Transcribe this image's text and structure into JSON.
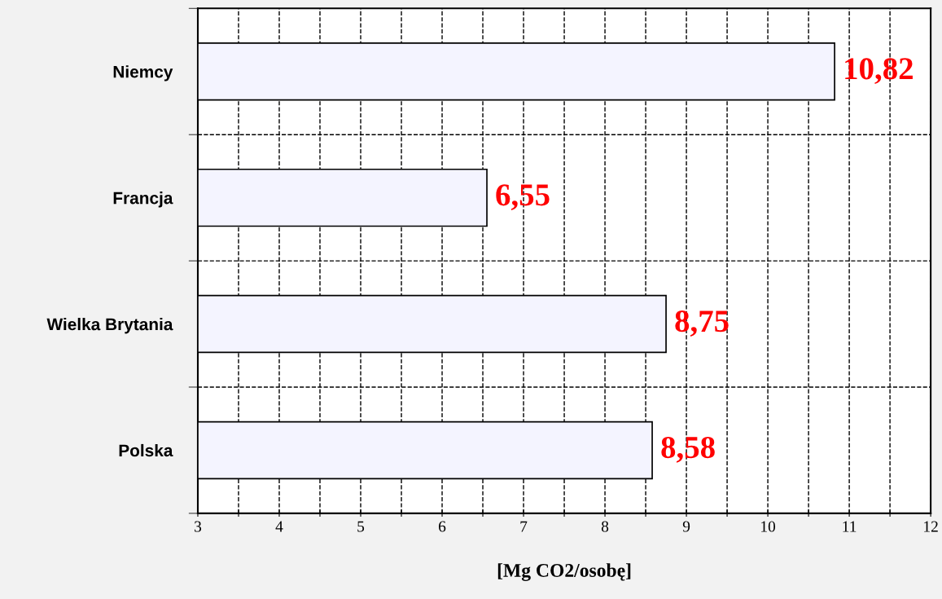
{
  "chart_data": {
    "type": "bar",
    "orientation": "horizontal",
    "categories": [
      "Niemcy",
      "Francja",
      "Wielka Brytania",
      "Polska"
    ],
    "values": [
      10.82,
      6.55,
      8.75,
      8.58
    ],
    "value_labels": [
      "10,82",
      "6,55",
      "8,75",
      "8,58"
    ],
    "color": "#f4f4ff",
    "xlabel": "[Mg CO2/osobę]",
    "xlim": [
      3,
      12
    ],
    "xticks": [
      3,
      {
        "value": 3.5,
        "label": null
      },
      4,
      {
        "value": 4.5,
        "label": null
      },
      5,
      {
        "value": 5.5,
        "label": null
      },
      6,
      {
        "value": 6.5,
        "label": null
      },
      7,
      {
        "value": 7.5,
        "label": null
      },
      8,
      {
        "value": 8.5,
        "label": null
      },
      9,
      {
        "value": 9.5,
        "label": null
      },
      10,
      {
        "value": 10.5,
        "label": null
      },
      11,
      {
        "value": 11.5,
        "label": null
      },
      12
    ],
    "grid": true,
    "legend": false
  }
}
